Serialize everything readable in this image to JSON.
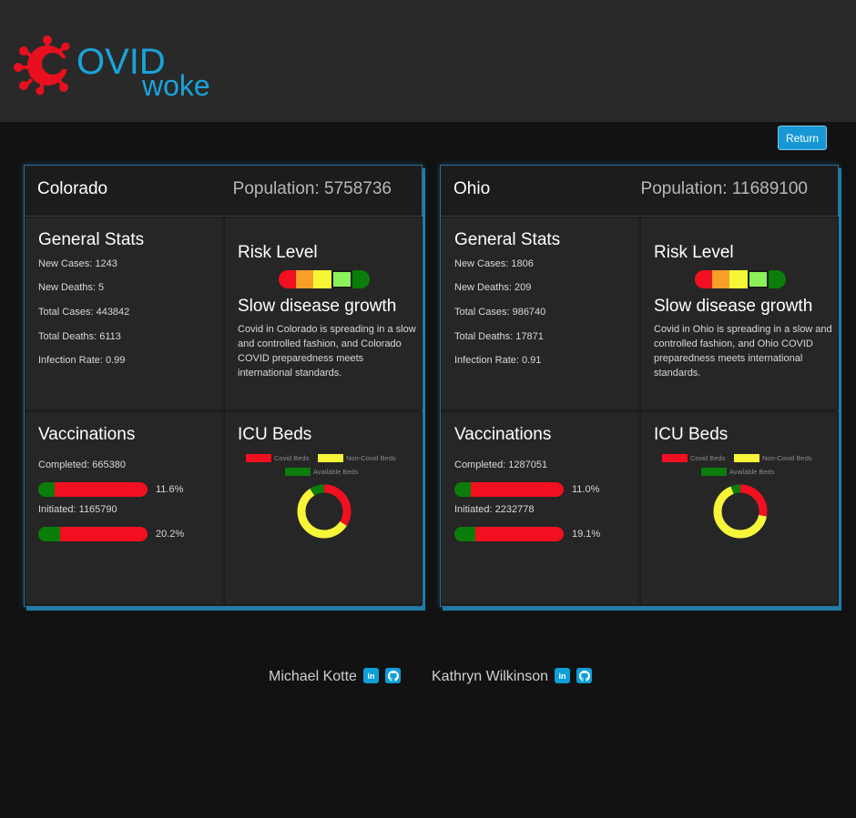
{
  "logo": {
    "covid_text": "OVID",
    "woke_text": "woke"
  },
  "return_label": "Return",
  "states": [
    {
      "name": "Colorado",
      "population_label": "Population: 5758736",
      "general": {
        "title": "General Stats",
        "new_cases": "New Cases: 1243",
        "new_deaths": "New Deaths: 5",
        "total_cases": "Total Cases: 443842",
        "total_deaths": "Total Deaths: 6113",
        "infection_rate": "Infection Rate: 0.99"
      },
      "risk": {
        "title": "Risk Level",
        "level": "Slow disease growth",
        "level_index": 3,
        "description": "Covid in Colorado is spreading in a slow and controlled fashion, and Colorado COVID preparedness meets international standards."
      },
      "vaccinations": {
        "title": "Vaccinations",
        "completed_label": "Completed: 665380",
        "completed_pct": "11.6%",
        "completed_fraction": 0.116,
        "initiated_label": "Initiated: 1165790",
        "initiated_pct": "20.2%",
        "initiated_fraction": 0.202
      },
      "icu": {
        "title": "ICU Beds",
        "legend_covid": "Covid Beds",
        "legend_noncovid": "Non-Covid Beds",
        "legend_available": "Available Beds",
        "covid_share": 0.34,
        "noncovid_share": 0.57,
        "available_share": 0.09
      }
    },
    {
      "name": "Ohio",
      "population_label": "Population: 11689100",
      "general": {
        "title": "General Stats",
        "new_cases": "New Cases: 1806",
        "new_deaths": "New Deaths: 209",
        "total_cases": "Total Cases: 986740",
        "total_deaths": "Total Deaths: 17871",
        "infection_rate": "Infection Rate: 0.91"
      },
      "risk": {
        "title": "Risk Level",
        "level": "Slow disease growth",
        "level_index": 3,
        "description": "Covid in Ohio is spreading in a slow and controlled fashion, and Ohio COVID preparedness meets international standards."
      },
      "vaccinations": {
        "title": "Vaccinations",
        "completed_label": "Completed: 1287051",
        "completed_pct": "11.0%",
        "completed_fraction": 0.11,
        "initiated_label": "Initiated: 2232778",
        "initiated_pct": "19.1%",
        "initiated_fraction": 0.191
      },
      "icu": {
        "title": "ICU Beds",
        "legend_covid": "Covid Beds",
        "legend_noncovid": "Non-Covid Beds",
        "legend_available": "Available Beds",
        "covid_share": 0.28,
        "noncovid_share": 0.66,
        "available_share": 0.06
      }
    }
  ],
  "risk_colors": [
    "#f20f1f",
    "#f7a028",
    "#f6f637",
    "#8cf25a",
    "#0a7d0a"
  ],
  "colors": {
    "accent": "#1798d4",
    "covid": "#f20f1f",
    "noncovid": "#f7f53a",
    "available": "#0a7d0a"
  },
  "authors": [
    {
      "name": "Michael Kotte",
      "linkedin_icon": "linkedin-icon",
      "github_icon": "github-icon"
    },
    {
      "name": "Kathryn Wilkinson",
      "linkedin_icon": "linkedin-icon",
      "github_icon": "github-icon"
    }
  ]
}
